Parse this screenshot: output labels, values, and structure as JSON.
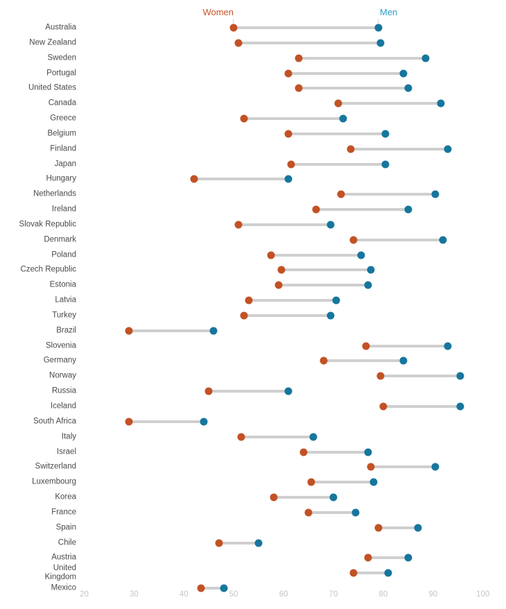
{
  "chart": {
    "background": "#ffffff",
    "colors": {
      "women_dot": "#c25224",
      "men_dot": "#16769d",
      "women_label": "#c8552a",
      "men_label": "#2e9dc4",
      "connector": "#cfcfcf",
      "category_text": "#4a4a4a",
      "axis_text": "#c5c5c5"
    }
  },
  "chart_data": {
    "type": "scatter",
    "variant": "dumbbell",
    "orientation": "horizontal",
    "title": "",
    "xlabel": "",
    "ylabel": "",
    "xlim": [
      20,
      100
    ],
    "x_ticks": [
      20,
      30,
      40,
      50,
      60,
      70,
      80,
      90,
      100
    ],
    "grid": false,
    "legend_position": "top",
    "categories": [
      "Australia",
      "New Zealand",
      "Sweden",
      "Portugal",
      "United States",
      "Canada",
      "Greece",
      "Belgium",
      "Finland",
      "Japan",
      "Hungary",
      "Netherlands",
      "Ireland",
      "Slovak Republic",
      "Denmark",
      "Poland",
      "Czech Republic",
      "Estonia",
      "Latvia",
      "Turkey",
      "Brazil",
      "Slovenia",
      "Germany",
      "Norway",
      "Russia",
      "Iceland",
      "South Africa",
      "Italy",
      "Israel",
      "Switzerland",
      "Luxembourg",
      "Korea",
      "France",
      "Spain",
      "Chile",
      "Austria",
      "United\nKingdom",
      "Mexico"
    ],
    "series": [
      {
        "name": "Women",
        "color": "#c25224",
        "values": [
          50,
          51,
          63,
          61,
          63,
          71,
          52,
          61,
          73.5,
          61.5,
          42,
          71.5,
          66.5,
          51,
          74,
          57.5,
          59.5,
          59,
          53,
          52,
          29,
          76.5,
          68,
          79.5,
          45,
          80,
          29,
          51.5,
          64,
          77.5,
          65.5,
          58,
          65,
          79,
          47,
          77,
          74,
          43.5
        ]
      },
      {
        "name": "Men",
        "color": "#16769d",
        "values": [
          79,
          79.5,
          88.5,
          84,
          85,
          91.5,
          72,
          80.5,
          93,
          80.5,
          61,
          90.5,
          85,
          69.5,
          92,
          75.5,
          77.5,
          77,
          70.5,
          69.5,
          46,
          93,
          84,
          95.5,
          61,
          95.5,
          44,
          66,
          77,
          90.5,
          78,
          70,
          74.5,
          87,
          55,
          85,
          81,
          48
        ]
      }
    ]
  }
}
